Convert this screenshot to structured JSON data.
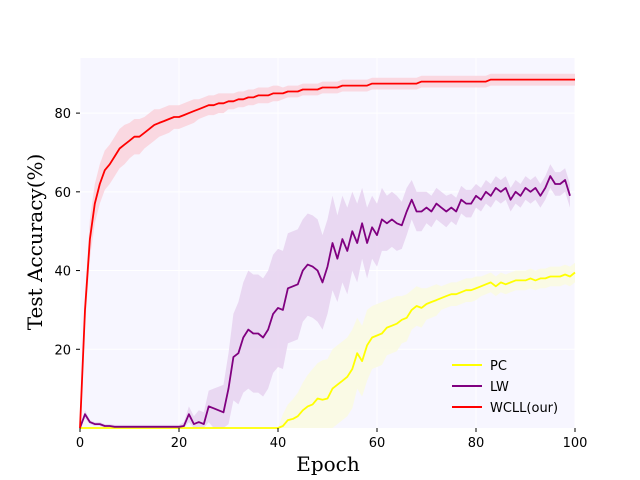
{
  "chart_data": {
    "type": "line",
    "title": "",
    "xlabel": "Epoch",
    "ylabel": "Test Accuracy(%)",
    "xlim": [
      0,
      100
    ],
    "ylim": [
      0,
      94
    ],
    "xticks": [
      0,
      20,
      40,
      60,
      80,
      100
    ],
    "yticks": [
      20,
      40,
      60,
      80
    ],
    "grid": true,
    "legend_position": "lower-right",
    "background": "#f7f6ff",
    "x_step": 1,
    "series": [
      {
        "name": "PC",
        "color": "#ffff00",
        "band_color": "#fafae0",
        "values": [
          0,
          0,
          0,
          0,
          0,
          0,
          0,
          0,
          0,
          0,
          0,
          0,
          0,
          0,
          0,
          0,
          0,
          0,
          0,
          0,
          0,
          0,
          0,
          0,
          0,
          0,
          0,
          0,
          0,
          0,
          0,
          0,
          0,
          0,
          0,
          0,
          0,
          0,
          0,
          0,
          0,
          0.5,
          2,
          2.3,
          3,
          4.5,
          5.5,
          6,
          7.5,
          7.2,
          7.5,
          10,
          11,
          12,
          13,
          15,
          19,
          17,
          21,
          23,
          23.5,
          24,
          25.5,
          26,
          26.5,
          27.5,
          28,
          30,
          31,
          30.5,
          31.5,
          32,
          32.5,
          33,
          33.5,
          34,
          34,
          34.5,
          35,
          35,
          35.5,
          36,
          36.5,
          37,
          36,
          37,
          36.5,
          37,
          37.5,
          37.5,
          37.5,
          38,
          37.5,
          38,
          38,
          38.5,
          38.5,
          38.5,
          39,
          38.5,
          39.5
        ],
        "band_width": [
          0,
          0,
          0,
          0,
          0,
          0,
          0,
          0,
          0,
          0,
          0,
          0,
          0,
          0,
          0,
          0,
          0,
          0,
          0,
          0,
          0,
          0,
          0,
          0,
          0,
          0,
          0,
          0,
          0,
          0,
          0,
          0,
          0,
          0,
          0,
          0,
          0,
          0,
          0,
          0,
          0,
          3,
          4,
          5,
          6,
          7,
          8,
          9,
          9,
          10,
          10,
          10,
          10,
          10,
          10,
          10,
          9,
          9,
          9,
          8,
          8,
          8,
          7,
          7,
          7,
          6,
          6,
          5,
          5,
          5,
          4,
          4,
          4,
          3,
          3,
          3,
          3,
          3,
          3,
          3,
          3,
          2.5,
          2.5,
          2.5,
          2.5,
          2.5,
          2.5,
          2.5,
          2.5,
          2.5,
          2.5,
          2.5,
          2.5,
          2.5,
          2.5,
          2.5,
          2.5,
          2.5,
          2.5,
          2.5,
          2.5
        ]
      },
      {
        "name": "LW",
        "color": "#800080",
        "band_color": "#e6d2f0",
        "values": [
          0,
          3.5,
          1.5,
          1,
          1,
          0.5,
          0.5,
          0.3,
          0.3,
          0.3,
          0.3,
          0.3,
          0.3,
          0.3,
          0.3,
          0.3,
          0.3,
          0.3,
          0.3,
          0.3,
          0.3,
          0.5,
          3.5,
          1,
          1.5,
          1,
          5.5,
          5,
          4.5,
          4,
          10,
          18,
          19,
          23,
          25,
          24,
          24,
          23,
          25,
          29,
          30.5,
          30,
          35.5,
          36,
          36.5,
          40,
          41.5,
          41,
          40,
          37,
          41,
          47,
          43,
          48,
          45,
          50,
          47,
          52,
          47,
          51,
          49,
          53,
          52,
          53,
          52,
          51.5,
          55,
          58,
          55,
          55,
          56,
          55,
          57,
          56,
          55,
          56,
          55,
          58,
          57,
          57,
          59,
          58,
          60,
          59,
          61,
          60,
          61,
          58,
          60,
          59,
          61,
          60,
          61,
          59,
          61,
          64,
          62,
          62,
          63,
          59
        ],
        "band_width": [
          0,
          1,
          0.5,
          0.5,
          0.5,
          0.5,
          0.5,
          0.5,
          0.5,
          0.5,
          0.5,
          0.5,
          0.5,
          0.5,
          0.5,
          0.5,
          0.5,
          0.5,
          0.5,
          0.5,
          0.5,
          1,
          2,
          2,
          3,
          3,
          4,
          5,
          6,
          7,
          9,
          11,
          13,
          14,
          15,
          15,
          15,
          15,
          15,
          15,
          15,
          15,
          14,
          14,
          14,
          13,
          13,
          13,
          13,
          12,
          12,
          12,
          11,
          11,
          11,
          10,
          10,
          9,
          9,
          8,
          8,
          8,
          7,
          7,
          7,
          6,
          6,
          5,
          5,
          5,
          4,
          4,
          4,
          4,
          4,
          3.5,
          3.5,
          3.5,
          3.5,
          3.5,
          3,
          3,
          3,
          3,
          3,
          3,
          3,
          3,
          3,
          3,
          3,
          3,
          3,
          3,
          3,
          3,
          3,
          3,
          3,
          3,
          3
        ]
      },
      {
        "name": "WCLL(our)",
        "color": "#ff0000",
        "band_color": "#fad2dc",
        "values": [
          0,
          30,
          48,
          57,
          62,
          65.5,
          67,
          69,
          71,
          72,
          73,
          74,
          74,
          75,
          76,
          77,
          77.5,
          78,
          78.5,
          79,
          79,
          79.5,
          80,
          80.5,
          81,
          81.5,
          82,
          82,
          82.5,
          82.5,
          83,
          83,
          83.5,
          83.5,
          84,
          84,
          84.5,
          84.5,
          84.5,
          85,
          85,
          85,
          85.5,
          85.5,
          85.5,
          86,
          86,
          86,
          86,
          86.5,
          86.5,
          86.5,
          86.5,
          87,
          87,
          87,
          87,
          87,
          87,
          87.5,
          87.5,
          87.5,
          87.5,
          87.5,
          87.5,
          87.5,
          87.5,
          87.5,
          87.5,
          88,
          88,
          88,
          88,
          88,
          88,
          88,
          88,
          88,
          88,
          88,
          88,
          88,
          88,
          88.5,
          88.5,
          88.5,
          88.5,
          88.5,
          88.5,
          88.5,
          88.5,
          88.5,
          88.5,
          88.5,
          88.5,
          88.5,
          88.5,
          88.5,
          88.5,
          88.5,
          88.5
        ],
        "band_width": [
          0,
          4,
          5,
          5,
          5,
          5,
          5,
          5,
          5,
          5,
          4.5,
          4.5,
          4.5,
          4,
          4,
          4,
          3.5,
          3.5,
          3.5,
          3,
          3,
          3,
          3,
          3,
          2.5,
          2.5,
          2.5,
          2.5,
          2.5,
          2.5,
          2,
          2,
          2,
          2,
          2,
          2,
          2,
          2,
          2,
          2,
          2,
          1.5,
          1.5,
          1.5,
          1.5,
          1.5,
          1.5,
          1.5,
          1.5,
          1.5,
          1.5,
          1.5,
          1.5,
          1.5,
          1.5,
          1.5,
          1.5,
          1.5,
          1.5,
          1.5,
          1.5,
          1.5,
          1.5,
          1.5,
          1.5,
          1.5,
          1.5,
          1.5,
          1.5,
          1.5,
          1.5,
          1.5,
          1.5,
          1.5,
          1.5,
          1.5,
          1.5,
          1.5,
          1.5,
          1.5,
          1.5,
          1.5,
          1.5,
          1.5,
          1.5,
          1.5,
          1.5,
          1.5,
          1.5,
          1.5,
          1.5,
          1.5,
          1.5,
          1.5,
          1.5,
          1.5,
          1.5,
          1.5,
          1.5,
          1.5,
          1.5
        ]
      }
    ]
  }
}
